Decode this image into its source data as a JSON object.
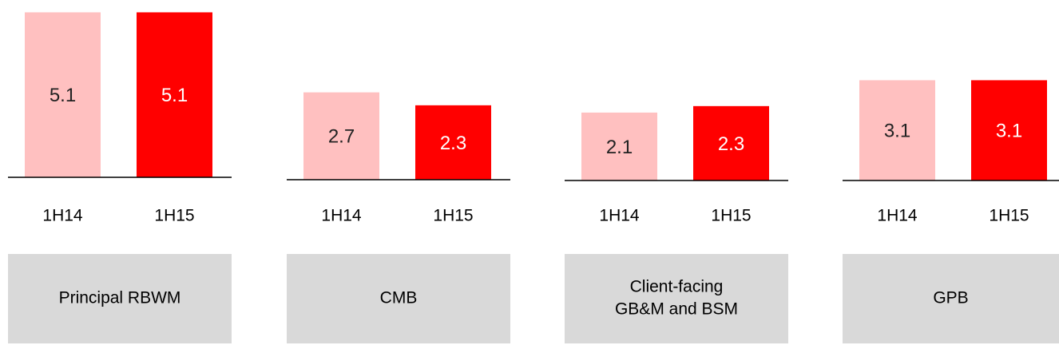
{
  "chart_data": [
    {
      "type": "bar",
      "title": [
        "Principal RBWM"
      ],
      "categories": [
        "1H14",
        "1H15"
      ],
      "values": [
        5.1,
        5.1
      ],
      "colors": [
        "#ffc0c0",
        "#ff0000"
      ]
    },
    {
      "type": "bar",
      "title": [
        "CMB"
      ],
      "categories": [
        "1H14",
        "1H15"
      ],
      "values": [
        2.7,
        2.3
      ],
      "colors": [
        "#ffc0c0",
        "#ff0000"
      ]
    },
    {
      "type": "bar",
      "title": [
        "Client-facing",
        "GB&M and BSM"
      ],
      "categories": [
        "1H14",
        "1H15"
      ],
      "values": [
        2.1,
        2.3
      ],
      "colors": [
        "#ffc0c0",
        "#ff0000"
      ]
    },
    {
      "type": "bar",
      "title": [
        "GPB"
      ],
      "categories": [
        "1H14",
        "1H15"
      ],
      "values": [
        3.1,
        3.1
      ],
      "colors": [
        "#ffc0c0",
        "#ff0000"
      ]
    }
  ]
}
